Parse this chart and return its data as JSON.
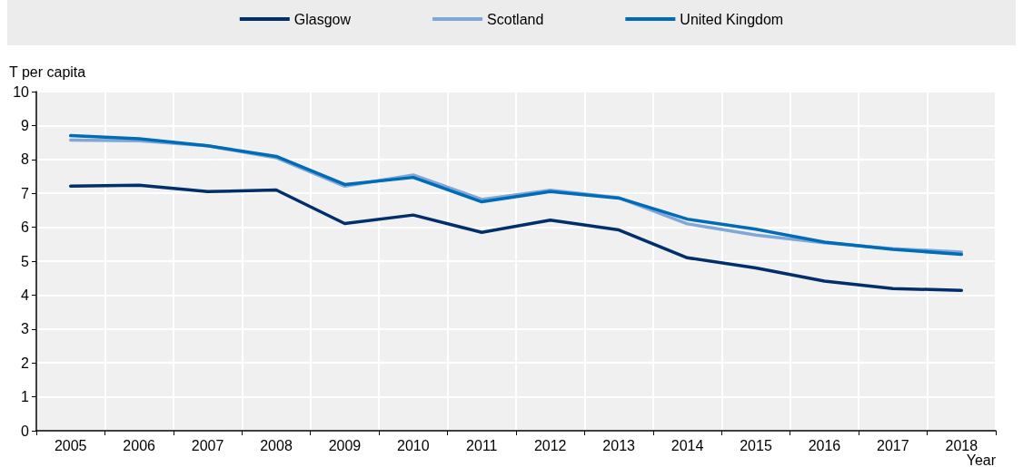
{
  "chart_data": {
    "type": "line",
    "ylabel": "T per capita",
    "xlabel": "Year",
    "categories": [
      "2005",
      "2006",
      "2007",
      "2008",
      "2009",
      "2010",
      "2011",
      "2012",
      "2013",
      "2014",
      "2015",
      "2016",
      "2017",
      "2018"
    ],
    "series": [
      {
        "name": "Glasgow",
        "color": "#002f6c",
        "values": [
          7.21,
          7.24,
          7.05,
          7.1,
          6.11,
          6.36,
          5.85,
          6.21,
          5.92,
          5.1,
          4.8,
          4.41,
          4.19,
          4.14
        ]
      },
      {
        "name": "Scotland",
        "color": "#7fa8d9",
        "values": [
          8.57,
          8.55,
          8.4,
          8.05,
          7.21,
          7.54,
          6.82,
          7.09,
          6.87,
          6.1,
          5.77,
          5.54,
          5.37,
          5.27
        ]
      },
      {
        "name": "United Kingdom",
        "color": "#006bb6",
        "values": [
          8.7,
          8.61,
          8.4,
          8.09,
          7.26,
          7.47,
          6.75,
          7.05,
          6.86,
          6.24,
          5.94,
          5.56,
          5.35,
          5.2
        ]
      }
    ],
    "ylim": [
      0,
      10
    ],
    "yticks": [
      0,
      1,
      2,
      3,
      4,
      5,
      6,
      7,
      8,
      9,
      10
    ],
    "grid": true,
    "legend": "top",
    "marker": "none",
    "line_style": "solid"
  }
}
